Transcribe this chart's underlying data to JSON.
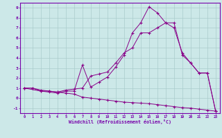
{
  "line1_x": [
    0,
    1,
    2,
    3,
    4,
    5,
    6,
    7,
    8,
    9,
    10,
    11,
    12,
    13,
    14,
    15,
    16,
    17,
    18,
    19,
    20,
    21,
    22,
    23
  ],
  "line1_y": [
    1.0,
    1.0,
    0.8,
    0.7,
    0.6,
    0.8,
    0.9,
    1.0,
    2.2,
    2.4,
    2.6,
    3.5,
    4.5,
    5.0,
    6.5,
    6.5,
    7.0,
    7.5,
    7.0,
    4.5,
    3.5,
    2.5,
    2.5,
    -1.3
  ],
  "line2_x": [
    0,
    2,
    3,
    4,
    5,
    6,
    7,
    8,
    9,
    10,
    11,
    12,
    13,
    14,
    15,
    16,
    17,
    18,
    19,
    20,
    21,
    22,
    23
  ],
  "line2_y": [
    1.0,
    0.7,
    0.6,
    0.5,
    0.7,
    0.7,
    3.3,
    1.1,
    1.6,
    2.1,
    3.1,
    4.3,
    6.5,
    7.5,
    9.1,
    8.5,
    7.5,
    7.5,
    4.3,
    3.5,
    2.5,
    2.5,
    -1.3
  ],
  "line3_x": [
    0,
    1,
    2,
    3,
    4,
    5,
    6,
    7,
    8,
    9,
    10,
    11,
    12,
    13,
    14,
    15,
    16,
    17,
    18,
    19,
    20,
    21,
    22,
    23
  ],
  "line3_y": [
    1.0,
    1.0,
    0.7,
    0.7,
    0.6,
    0.5,
    0.4,
    0.1,
    0.0,
    -0.1,
    -0.2,
    -0.3,
    -0.4,
    -0.45,
    -0.5,
    -0.55,
    -0.65,
    -0.75,
    -0.85,
    -0.95,
    -1.0,
    -1.1,
    -1.2,
    -1.3
  ],
  "line_color": "#880088",
  "marker": "+",
  "bg_color": "#cce8e8",
  "grid_color": "#aacccc",
  "border_color": "#7700aa",
  "xlabel": "Windchill (Refroidissement éolien,°C)",
  "xlim": [
    -0.5,
    23.5
  ],
  "ylim": [
    -1.5,
    9.5
  ],
  "xticks": [
    0,
    1,
    2,
    3,
    4,
    5,
    6,
    7,
    8,
    9,
    10,
    11,
    12,
    13,
    14,
    15,
    16,
    17,
    18,
    19,
    20,
    21,
    22,
    23
  ],
  "yticks": [
    -1,
    0,
    1,
    2,
    3,
    4,
    5,
    6,
    7,
    8,
    9
  ]
}
